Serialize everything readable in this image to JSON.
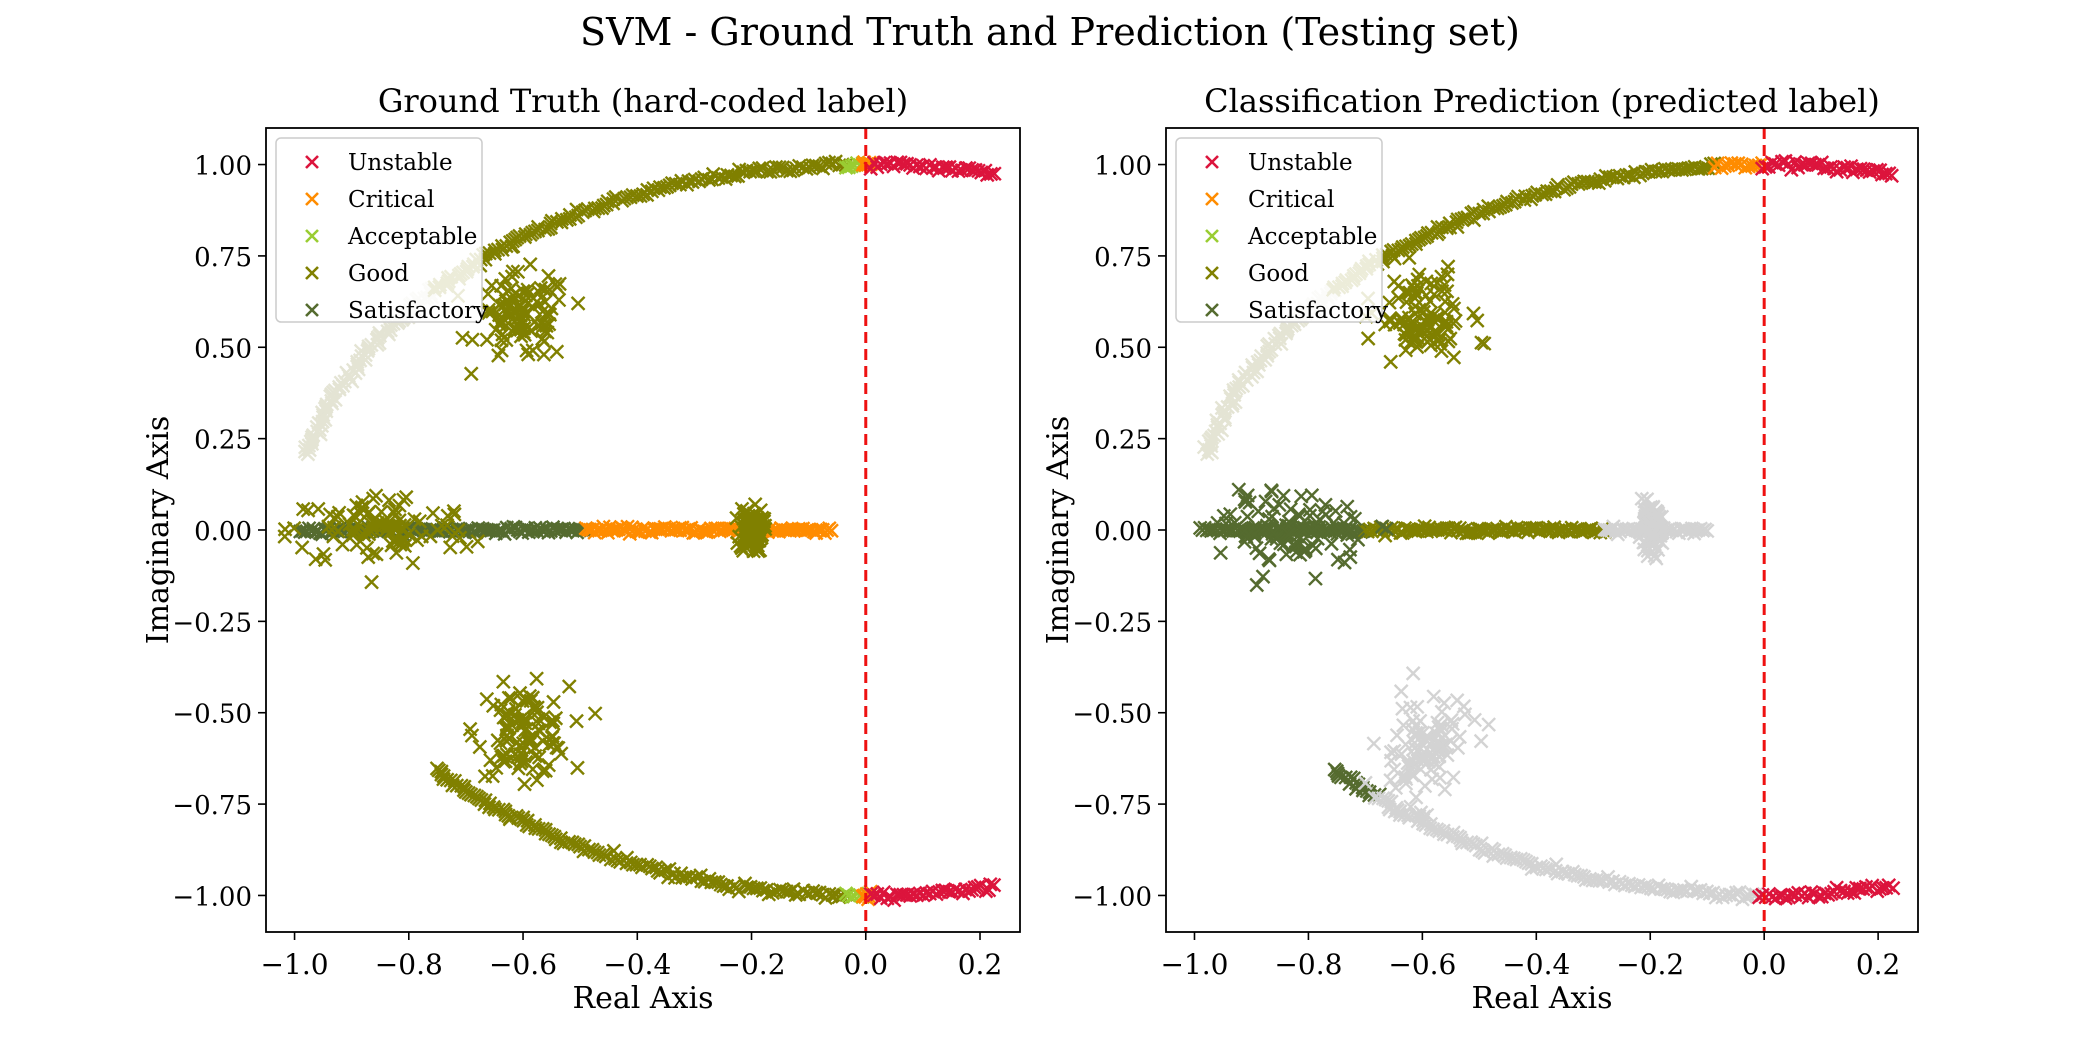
{
  "suptitle": "SVM - Ground Truth and Prediction (Testing set)",
  "chart_data": [
    {
      "type": "scatter",
      "title": "Ground Truth (hard-coded label)",
      "xlabel": "Real Axis",
      "ylabel": "Imaginary Axis",
      "xlim": [
        -1.05,
        0.27
      ],
      "ylim": [
        -1.1,
        1.1
      ],
      "xticks": [
        "−1.0",
        "−0.8",
        "−0.6",
        "−0.4",
        "−0.2",
        "0.0",
        "0.2"
      ],
      "xtick_values": [
        -1.0,
        -0.8,
        -0.6,
        -0.4,
        -0.2,
        0.0,
        0.2
      ],
      "yticks": [
        "−1.00",
        "−0.75",
        "−0.50",
        "−0.25",
        "0.00",
        "0.25",
        "0.50",
        "0.75",
        "1.00"
      ],
      "ytick_values": [
        -1.0,
        -0.75,
        -0.5,
        -0.25,
        0.0,
        0.25,
        0.5,
        0.75,
        1.0
      ],
      "reference_line": {
        "x": 0.0,
        "style": "dashed",
        "color": "#ee1111"
      },
      "legend": {
        "position": "upper-left",
        "entries": [
          {
            "label": "Unstable",
            "color": "#dc143c"
          },
          {
            "label": "Critical",
            "color": "#ff8c00"
          },
          {
            "label": "Acceptable",
            "color": "#9acd32"
          },
          {
            "label": "Good",
            "color": "#808000"
          },
          {
            "label": "Satisfactory",
            "color": "#556b2f"
          }
        ]
      },
      "marker": "x",
      "regions": [
        {
          "shape": "arc",
          "theta_deg": [
            168,
            139
          ],
          "color": "#e4e4d4",
          "note": "light upper arc"
        },
        {
          "shape": "arc",
          "theta_deg": [
            139,
            92
          ],
          "color": "#808000"
        },
        {
          "shape": "arc",
          "theta_deg": [
            92,
            90.3
          ],
          "color": "#9acd32"
        },
        {
          "shape": "arc",
          "theta_deg": [
            90.3,
            89.5
          ],
          "color": "#ff8c00"
        },
        {
          "shape": "arc",
          "theta_deg": [
            89.5,
            77
          ],
          "color": "#dc143c"
        },
        {
          "shape": "arc",
          "theta_deg": [
            -139,
            -92
          ],
          "color": "#808000"
        },
        {
          "shape": "arc",
          "theta_deg": [
            -92,
            -90.3
          ],
          "color": "#9acd32"
        },
        {
          "shape": "arc",
          "theta_deg": [
            -90.3,
            -89.5
          ],
          "color": "#ff8c00"
        },
        {
          "shape": "arc",
          "theta_deg": [
            -89.5,
            -77
          ],
          "color": "#dc143c"
        },
        {
          "shape": "axis",
          "x": [
            -0.99,
            -0.49
          ],
          "color": "#556b2f"
        },
        {
          "shape": "axis",
          "x": [
            -0.49,
            -0.06
          ],
          "color": "#ff8c00"
        },
        {
          "shape": "cluster",
          "cx": -0.6,
          "cy": 0.58,
          "sx": 0.04,
          "sy": 0.06,
          "color": "#808000"
        },
        {
          "shape": "cluster",
          "cx": -0.6,
          "cy": -0.55,
          "sx": 0.04,
          "sy": 0.06,
          "color": "#808000"
        },
        {
          "shape": "cluster",
          "cx": -0.85,
          "cy": 0.0,
          "sx": 0.08,
          "sy": 0.05,
          "color": "#808000"
        },
        {
          "shape": "cluster",
          "cx": -0.2,
          "cy": 0.0,
          "sx": 0.01,
          "sy": 0.03,
          "color": "#808000"
        }
      ]
    },
    {
      "type": "scatter",
      "title": "Classification Prediction (predicted label)",
      "xlabel": "Real Axis",
      "ylabel": "Imaginary Axis",
      "xlim": [
        -1.05,
        0.27
      ],
      "ylim": [
        -1.1,
        1.1
      ],
      "xticks": [
        "−1.0",
        "−0.8",
        "−0.6",
        "−0.4",
        "−0.2",
        "0.0",
        "0.2"
      ],
      "xtick_values": [
        -1.0,
        -0.8,
        -0.6,
        -0.4,
        -0.2,
        0.0,
        0.2
      ],
      "yticks": [
        "−1.00",
        "−0.75",
        "−0.50",
        "−0.25",
        "0.00",
        "0.25",
        "0.50",
        "0.75",
        "1.00"
      ],
      "ytick_values": [
        -1.0,
        -0.75,
        -0.5,
        -0.25,
        0.0,
        0.25,
        0.5,
        0.75,
        1.0
      ],
      "reference_line": {
        "x": 0.0,
        "style": "dashed",
        "color": "#ee1111"
      },
      "legend": {
        "position": "upper-left",
        "entries": [
          {
            "label": "Unstable",
            "color": "#dc143c"
          },
          {
            "label": "Critical",
            "color": "#ff8c00"
          },
          {
            "label": "Acceptable",
            "color": "#9acd32"
          },
          {
            "label": "Good",
            "color": "#808000"
          },
          {
            "label": "Satisfactory",
            "color": "#556b2f"
          }
        ]
      },
      "marker": "x",
      "regions": [
        {
          "shape": "arc",
          "theta_deg": [
            168,
            139
          ],
          "color": "#e4e4d4",
          "note": "light upper arc"
        },
        {
          "shape": "arc",
          "theta_deg": [
            139,
            95
          ],
          "color": "#808000"
        },
        {
          "shape": "arc",
          "theta_deg": [
            95,
            90.2
          ],
          "color": "#ff8c00"
        },
        {
          "shape": "arc",
          "theta_deg": [
            90.2,
            77
          ],
          "color": "#dc143c"
        },
        {
          "shape": "arc",
          "theta_deg": [
            -139,
            -133
          ],
          "color": "#556b2f"
        },
        {
          "shape": "arc",
          "theta_deg": [
            -133,
            -90.5
          ],
          "color": "#d3d3d3"
        },
        {
          "shape": "arc",
          "theta_deg": [
            -90.5,
            -77
          ],
          "color": "#dc143c"
        },
        {
          "shape": "axis",
          "x": [
            -0.99,
            -0.7
          ],
          "color": "#556b2f"
        },
        {
          "shape": "axis",
          "x": [
            -0.7,
            -0.28
          ],
          "color": "#808000"
        },
        {
          "shape": "axis",
          "x": [
            -0.28,
            -0.1
          ],
          "color": "#d3d3d3"
        },
        {
          "shape": "cluster",
          "cx": -0.6,
          "cy": 0.58,
          "sx": 0.04,
          "sy": 0.06,
          "color": "#808000"
        },
        {
          "shape": "cluster",
          "cx": -0.6,
          "cy": -0.6,
          "sx": 0.04,
          "sy": 0.07,
          "color": "#d3d3d3"
        },
        {
          "shape": "cluster",
          "cx": -0.82,
          "cy": 0.0,
          "sx": 0.06,
          "sy": 0.05,
          "color": "#556b2f"
        },
        {
          "shape": "cluster",
          "cx": -0.2,
          "cy": 0.0,
          "sx": 0.01,
          "sy": 0.03,
          "color": "#d3d3d3"
        }
      ]
    }
  ]
}
